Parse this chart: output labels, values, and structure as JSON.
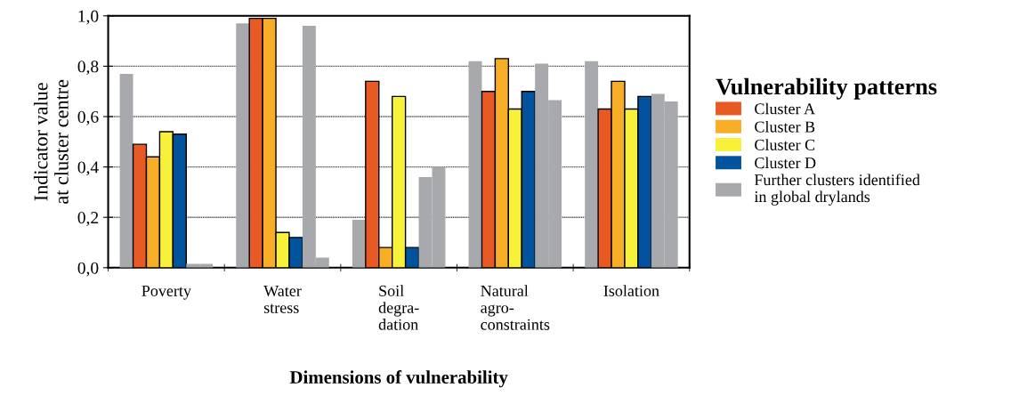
{
  "chart_data": {
    "type": "bar",
    "xlabel": "Dimensions of vulnerability",
    "ylabel": "Indicator value\nat cluster centre",
    "legend_title": "Vulnerability patterns",
    "categories": [
      "Poverty",
      "Water\nstress",
      "Soil\ndegra-\ndation",
      "Natural\nagro-\nconstraints",
      "Isolation"
    ],
    "series": [
      {
        "color": "#a8a9ad",
        "values": [
          0.77,
          0.97,
          0.19,
          0.82,
          0.82
        ]
      },
      {
        "name": "Cluster A",
        "color": "#e85a24",
        "values": [
          0.49,
          0.99,
          0.74,
          0.7,
          0.63
        ]
      },
      {
        "name": "Cluster B",
        "color": "#f7ae26",
        "values": [
          0.44,
          0.99,
          0.08,
          0.83,
          0.74
        ]
      },
      {
        "name": "Cluster C",
        "color": "#f8f13a",
        "values": [
          0.54,
          0.14,
          0.68,
          0.63,
          0.63
        ]
      },
      {
        "name": "Cluster D",
        "color": "#00539c",
        "values": [
          0.53,
          0.12,
          0.08,
          0.7,
          0.68
        ]
      },
      {
        "name": "Further clusters identified\nin global drylands",
        "color": "#a8a9ad",
        "values": [
          0.015,
          0.96,
          0.36,
          0.81,
          0.69
        ]
      },
      {
        "color": "#a8a9ad",
        "values": [
          0.015,
          0.04,
          0.4,
          0.665,
          0.66
        ]
      }
    ],
    "ylim": [
      0,
      1
    ],
    "yticks": [
      {
        "value": 0,
        "label": "0,0"
      },
      {
        "value": 0.2,
        "label": "0,2"
      },
      {
        "value": 0.4,
        "label": "0,4"
      },
      {
        "value": 0.6,
        "label": "0,6"
      },
      {
        "value": 0.8,
        "label": "0,8"
      },
      {
        "value": 1,
        "label": "1,0"
      }
    ],
    "grid": "y",
    "legend": "right"
  }
}
